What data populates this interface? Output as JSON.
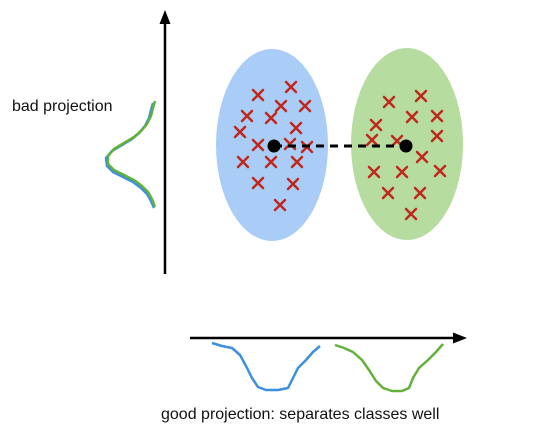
{
  "labels": {
    "bad_projection": "bad projection",
    "good_projection": "good projection: separates classes well"
  },
  "colors": {
    "class_a_fill": "#aacdf7",
    "class_b_fill": "#b6dca0",
    "marker": "#c0281e",
    "mean": "#000000",
    "axis": "#000000",
    "curve_blue": "#3d8fe0",
    "curve_green": "#62b13a"
  },
  "icons": {
    "class_marker": "x-marker",
    "class_mean": "filled-circle"
  }
}
